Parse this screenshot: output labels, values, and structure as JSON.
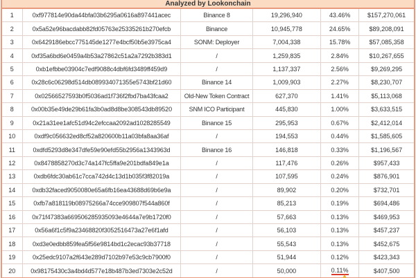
{
  "header": {
    "title": "Analyzed by Lookonchain"
  },
  "table": {
    "column_keys": [
      "rank",
      "address",
      "label",
      "amount",
      "percent",
      "value"
    ],
    "rows": [
      {
        "rank": "1",
        "address": "0xf977814e90da44bfa03b6295a0616a897441acec",
        "label": "Binance 8",
        "amount": "19,296,940",
        "percent": "43.46%",
        "value": "$157,270,061"
      },
      {
        "rank": "2",
        "address": "0x5a52e96bacdabb82fd05763e25335261b270efcb",
        "label": "Binance",
        "amount": "10,945,778",
        "percent": "24.65%",
        "value": "$89,208,091"
      },
      {
        "rank": "3",
        "address": "0x6429186ebcc775145de1277e4bcf50b5e3975ca4",
        "label": "SONM: Deployer",
        "amount": "7,004,338",
        "percent": "15.78%",
        "value": "$57,085,358"
      },
      {
        "rank": "4",
        "address": "0xf35a6bd6e0459a4b53a27862c51a2a7292b383d1",
        "label": "/",
        "amount": "1,259,835",
        "percent": "2.84%",
        "value": "$10,267,655"
      },
      {
        "rank": "5",
        "address": "0xb1efbbe03904c7edf9088c4dbf6fd3489ff459d9",
        "label": "/",
        "amount": "1,137,337",
        "percent": "2.56%",
        "value": "$9,269,295"
      },
      {
        "rank": "6",
        "address": "0x28c6c06298d514db089934071355e5743bf21d60",
        "label": "Binance 14",
        "amount": "1,009,903",
        "percent": "2.27%",
        "value": "$8,230,707"
      },
      {
        "rank": "7",
        "address": "0x02566527593b0f5036ad1f736f2fbd7ba43fcaa2",
        "label": "Old-New Token Contract",
        "amount": "627,370",
        "percent": "1.41%",
        "value": "$5,113,068"
      },
      {
        "rank": "8",
        "address": "0x00b35e49de29b61fa3b0ad8d8be308543db89520",
        "label": "SNM ICO Participant",
        "amount": "445,830",
        "percent": "1.00%",
        "value": "$3,633,515"
      },
      {
        "rank": "9",
        "address": "0x21a31ee1afc51d94c2efccaa2092ad1028285549",
        "label": "Binance 15",
        "amount": "295,953",
        "percent": "0.67%",
        "value": "$2,412,014"
      },
      {
        "rank": "10",
        "address": "0xdf9c056632ed8cf52a820600b11a03bfa8aa36af",
        "label": "/",
        "amount": "194,553",
        "percent": "0.44%",
        "value": "$1,585,605"
      },
      {
        "rank": "11",
        "address": "0xdfd5293d8e347dfe59e90efd55b2956a1343963d",
        "label": "Binance 16",
        "amount": "146,818",
        "percent": "0.33%",
        "value": "$1,196,567"
      },
      {
        "rank": "12",
        "address": "0x8478858270d3c74a147fc5ffa9e201bdfa849e1a",
        "label": "/",
        "amount": "117,476",
        "percent": "0.26%",
        "value": "$957,433"
      },
      {
        "rank": "13",
        "address": "0xdb6fdc30ab61c7cca742d4c13d1b035f3f82019a",
        "label": "/",
        "amount": "107,595",
        "percent": "0.24%",
        "value": "$876,901"
      },
      {
        "rank": "14",
        "address": "0xdb32faced9050080e65a6fb16ea43688d69b6e9a",
        "label": "/",
        "amount": "89,902",
        "percent": "0.20%",
        "value": "$732,701"
      },
      {
        "rank": "15",
        "address": "0xfb7a818119b08975266a74cce909807f544a860f",
        "label": "/",
        "amount": "85,213",
        "percent": "0.19%",
        "value": "$694,486"
      },
      {
        "rank": "16",
        "address": "0x71f47383a669506285935093e4644a7e9b1720f0",
        "label": "/",
        "amount": "57,663",
        "percent": "0.13%",
        "value": "$469,953"
      },
      {
        "rank": "17",
        "address": "0x56a6f1c5f9a23468820f3052516473a27e6f1afd",
        "label": "/",
        "amount": "56,103",
        "percent": "0.13%",
        "value": "$457,237"
      },
      {
        "rank": "18",
        "address": "0xd3e0edbb859fea5f56e9814bd1c2ecac93b37718",
        "label": "/",
        "amount": "55,543",
        "percent": "0.13%",
        "value": "$452,675"
      },
      {
        "rank": "19",
        "address": "0x25edc9107a2f643e289d7102b97e53c9cb7900f0",
        "label": "/",
        "amount": "51,944",
        "percent": "0.12%",
        "value": "$423,343"
      },
      {
        "rank": "20",
        "address": "0x98175430c3a4bd4d577e18b487b3ed7303e2c52d",
        "label": "/",
        "amount": "50,000",
        "percent": "0.11%",
        "value": "$407,500"
      }
    ]
  },
  "annotation": {
    "row": "20",
    "column": "percent",
    "style": "red-underline",
    "cursor_icon": "yellow-arrow-cursor",
    "underline_color": "#d93a2b",
    "cursor_color": "#edb237"
  },
  "colors": {
    "outer_border": "#e79a7d",
    "header_background": "#fbdcc3",
    "cell_border": "#e1d3cc",
    "text": "#333333"
  }
}
